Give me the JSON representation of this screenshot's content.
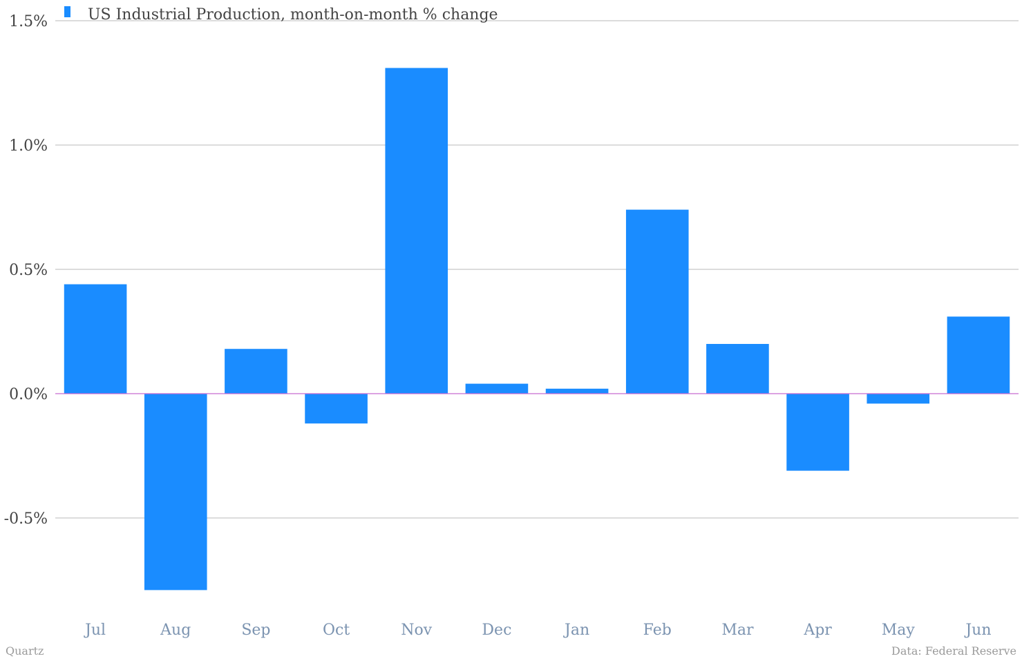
{
  "chart_data": {
    "type": "bar",
    "categories": [
      "Jul",
      "Aug",
      "Sep",
      "Oct",
      "Nov",
      "Dec",
      "Jan",
      "Feb",
      "Mar",
      "Apr",
      "May",
      "Jun"
    ],
    "series": [
      {
        "name": "US Industrial Production, month-on-month % change",
        "values": [
          0.44,
          -0.79,
          0.18,
          -0.12,
          1.31,
          0.04,
          0.02,
          0.74,
          0.2,
          -0.31,
          -0.04,
          0.31
        ]
      }
    ],
    "ylim": [
      -0.8,
      1.5
    ],
    "yticks": [
      {
        "value": 1.5,
        "label": "1.5%"
      },
      {
        "value": 1.0,
        "label": "1.0%"
      },
      {
        "value": 0.5,
        "label": "0.5%"
      },
      {
        "value": 0.0,
        "label": "0.0%"
      },
      {
        "value": -0.5,
        "label": "-0.5%"
      }
    ],
    "grid": true,
    "legend_position": "top-left",
    "bar_color": "#1a8cff",
    "zero_line_color": "#c86ad0"
  },
  "footer": {
    "left": "Quartz",
    "right": "Data: Federal Reserve"
  }
}
